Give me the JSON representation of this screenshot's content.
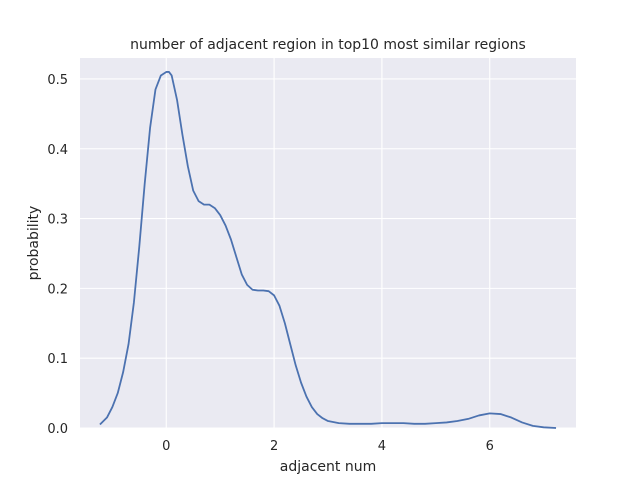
{
  "chart_data": {
    "type": "line",
    "title": "number of adjacent region in top10 most similar regions",
    "xlabel": "adjacent num",
    "ylabel": "probability",
    "xlim": [
      -1.6,
      7.6
    ],
    "ylim": [
      0,
      0.53
    ],
    "xticks": [
      0,
      2,
      4,
      6
    ],
    "yticks": [
      0.0,
      0.1,
      0.2,
      0.3,
      0.4,
      0.5
    ],
    "xtick_labels": [
      "0",
      "2",
      "4",
      "6"
    ],
    "ytick_labels": [
      "0.0",
      "0.1",
      "0.2",
      "0.3",
      "0.4",
      "0.5"
    ],
    "grid": true,
    "legend": "none",
    "colors": {
      "series": "#4c72b0",
      "background": "#eaeaf2",
      "grid": "#ffffff"
    },
    "series": [
      {
        "x": [
          -1.23,
          -1.1,
          -1.0,
          -0.9,
          -0.8,
          -0.7,
          -0.6,
          -0.5,
          -0.4,
          -0.3,
          -0.2,
          -0.1,
          0.0,
          0.05,
          0.1,
          0.2,
          0.3,
          0.4,
          0.5,
          0.6,
          0.7,
          0.8,
          0.9,
          1.0,
          1.1,
          1.2,
          1.3,
          1.4,
          1.5,
          1.6,
          1.7,
          1.8,
          1.9,
          2.0,
          2.1,
          2.2,
          2.3,
          2.4,
          2.5,
          2.6,
          2.7,
          2.8,
          2.9,
          3.0,
          3.2,
          3.4,
          3.6,
          3.8,
          4.0,
          4.2,
          4.4,
          4.6,
          4.8,
          5.0,
          5.2,
          5.4,
          5.6,
          5.8,
          6.0,
          6.2,
          6.4,
          6.6,
          6.8,
          7.0,
          7.23
        ],
        "y": [
          0.005,
          0.015,
          0.03,
          0.05,
          0.08,
          0.12,
          0.18,
          0.26,
          0.35,
          0.43,
          0.485,
          0.505,
          0.51,
          0.51,
          0.505,
          0.47,
          0.42,
          0.375,
          0.34,
          0.325,
          0.32,
          0.32,
          0.315,
          0.305,
          0.29,
          0.27,
          0.245,
          0.22,
          0.205,
          0.198,
          0.197,
          0.197,
          0.196,
          0.19,
          0.175,
          0.15,
          0.12,
          0.09,
          0.065,
          0.045,
          0.03,
          0.02,
          0.014,
          0.01,
          0.007,
          0.006,
          0.006,
          0.006,
          0.007,
          0.007,
          0.007,
          0.006,
          0.006,
          0.007,
          0.008,
          0.01,
          0.013,
          0.018,
          0.021,
          0.02,
          0.015,
          0.008,
          0.003,
          0.001,
          0.0
        ]
      }
    ]
  }
}
